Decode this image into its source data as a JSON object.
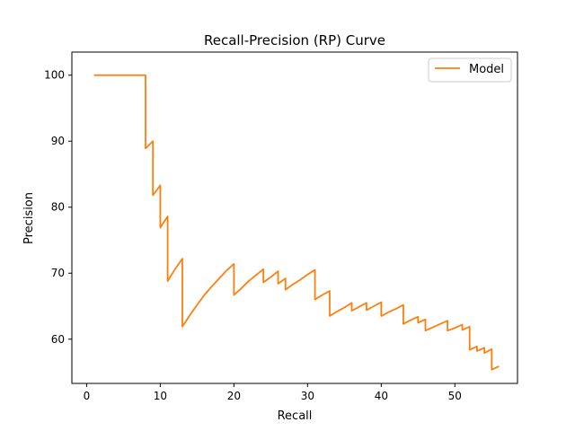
{
  "chart_data": {
    "type": "line",
    "title": "Recall-Precision (RP) Curve",
    "xlabel": "Recall",
    "ylabel": "Precision",
    "xlim": [
      -2,
      58.5
    ],
    "ylim": [
      53.3,
      103.5
    ],
    "xticks": [
      0,
      10,
      20,
      30,
      40,
      50
    ],
    "yticks": [
      60,
      70,
      80,
      90,
      100
    ],
    "grid": false,
    "legend": {
      "placement": "top-right"
    },
    "series": [
      {
        "name": "Model",
        "color": "#ff7f0e",
        "x": [
          1,
          2,
          3,
          4,
          5,
          6,
          7,
          8,
          8,
          9,
          9,
          10,
          10,
          11,
          11,
          12,
          13,
          13,
          14,
          15,
          16,
          17,
          18,
          19,
          20,
          20,
          21,
          22,
          23,
          24,
          24,
          25,
          26,
          26,
          27,
          27,
          28,
          29,
          30,
          31,
          31,
          32,
          33,
          33,
          34,
          35,
          36,
          36,
          37,
          38,
          38,
          39,
          40,
          40,
          41,
          42,
          43,
          43,
          44,
          45,
          45,
          46,
          46,
          47,
          48,
          49,
          49,
          50,
          51,
          51,
          52,
          52,
          53,
          53,
          54,
          54,
          55,
          55,
          56
        ],
        "y": [
          100,
          100,
          100,
          100,
          100,
          100,
          100,
          100,
          88.9,
          90,
          81.8,
          83.3,
          76.9,
          78.6,
          68.8,
          70.6,
          72.2,
          61.9,
          63.6,
          65.2,
          66.7,
          68,
          69.2,
          70.4,
          71.4,
          66.7,
          67.7,
          68.8,
          69.7,
          70.6,
          68.6,
          69.4,
          70.3,
          68.4,
          69.2,
          67.5,
          68.3,
          69,
          69.8,
          70.5,
          66,
          66.7,
          67.3,
          63.5,
          64.2,
          64.8,
          65.5,
          64.3,
          64.9,
          65.5,
          64.4,
          65,
          65.6,
          63.5,
          64.1,
          64.6,
          65.2,
          62.3,
          62.9,
          63.4,
          62.5,
          63,
          61.3,
          61.8,
          62.3,
          62.8,
          61.3,
          61.7,
          62.2,
          61.4,
          61.9,
          58.4,
          58.9,
          58.2,
          58.7,
          57.9,
          58.5,
          55.4,
          55.9
        ]
      }
    ]
  }
}
